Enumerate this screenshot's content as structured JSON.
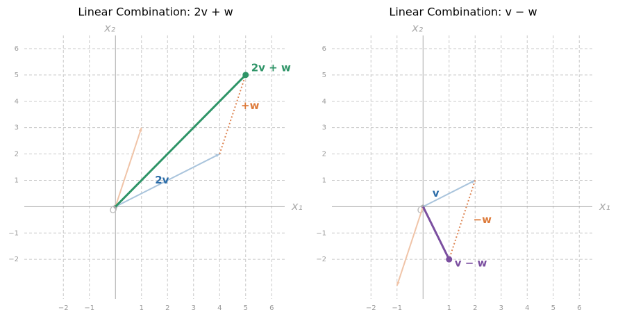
{
  "chart_data": [
    {
      "type": "vector",
      "title": "Linear Combination: 2v + w",
      "xlabel": "x₁",
      "ylabel": "x₂",
      "origin_label": "O",
      "xlim": [
        -3.5,
        6.5
      ],
      "ylim": [
        -3.5,
        6.5
      ],
      "grid": true,
      "xticks": [
        {
          "value": -2,
          "label": "−2"
        },
        {
          "value": -1,
          "label": "−1"
        },
        1,
        2,
        3,
        4,
        5,
        6
      ],
      "yticks": [
        {
          "value": -2,
          "label": "−2"
        },
        {
          "value": -1,
          "label": "−1"
        },
        1,
        2,
        3,
        4,
        5,
        6
      ],
      "vectors": [
        {
          "start": [
            0,
            0
          ],
          "end": [
            1,
            3
          ],
          "color": "#f0c4a8",
          "style": "solid",
          "emphasis": false
        },
        {
          "start": [
            0,
            0
          ],
          "end": [
            4,
            2
          ],
          "color": "#a9c4dc",
          "style": "solid",
          "emphasis": false,
          "label": "2v",
          "label_color": "#2b6ca8"
        },
        {
          "start": [
            4,
            2
          ],
          "end": [
            5,
            5
          ],
          "color": "#dd8452",
          "style": "dotted",
          "emphasis": false,
          "label": "+w",
          "label_color": "#dd7a3a"
        },
        {
          "start": [
            0,
            0
          ],
          "end": [
            5,
            5
          ],
          "color": "#2e9467",
          "style": "solid",
          "emphasis": true,
          "label": "2v + w",
          "label_color": "#2e9467"
        }
      ]
    },
    {
      "type": "vector",
      "title": "Linear Combination: v − w",
      "xlabel": "x₁",
      "ylabel": "x₂",
      "origin_label": "O",
      "xlim": [
        -3.5,
        6.5
      ],
      "ylim": [
        -3.5,
        6.5
      ],
      "grid": true,
      "xticks": [
        {
          "value": -2,
          "label": "−2"
        },
        {
          "value": -1,
          "label": "−1"
        },
        1,
        2,
        3,
        4,
        5,
        6
      ],
      "yticks": [
        {
          "value": -2,
          "label": "−2"
        },
        {
          "value": -1,
          "label": "−1"
        },
        1,
        2,
        3,
        4,
        5,
        6
      ],
      "vectors": [
        {
          "start": [
            0,
            0
          ],
          "end": [
            2,
            1
          ],
          "color": "#a9c4dc",
          "style": "solid",
          "emphasis": false,
          "label": "v",
          "label_color": "#2b6ca8"
        },
        {
          "start": [
            0,
            0
          ],
          "end": [
            -1,
            -3
          ],
          "color": "#f0c4a8",
          "style": "solid",
          "emphasis": false
        },
        {
          "start": [
            2,
            1
          ],
          "end": [
            1,
            -2
          ],
          "color": "#dd8452",
          "style": "dotted",
          "emphasis": false,
          "label": "−w",
          "label_color": "#dd7a3a"
        },
        {
          "start": [
            0,
            0
          ],
          "end": [
            1,
            -2
          ],
          "color": "#7b4fa0",
          "style": "solid",
          "emphasis": true,
          "label": "v − w",
          "label_color": "#7b4fa0"
        }
      ]
    }
  ]
}
